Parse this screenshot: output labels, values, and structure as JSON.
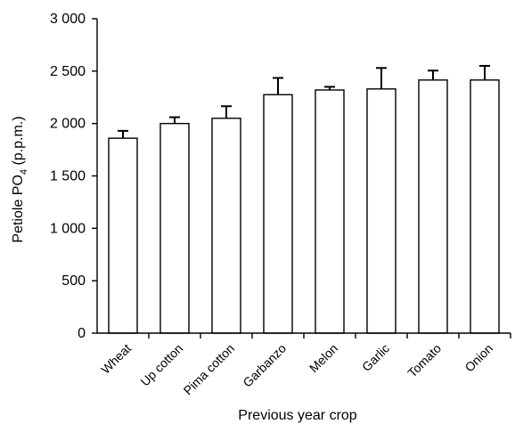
{
  "chart_data": {
    "type": "bar",
    "categories": [
      "Wheat",
      "Up cotton",
      "Pima cotton",
      "Garbanzo",
      "Melon",
      "Garlic",
      "Tomato",
      "Onion"
    ],
    "values": [
      1860,
      2000,
      2050,
      2275,
      2320,
      2330,
      2415,
      2415
    ],
    "error_upper": [
      70,
      60,
      115,
      160,
      30,
      200,
      90,
      135
    ],
    "xlabel": "Previous year crop",
    "ylabel_main": "Petiole PO",
    "ylabel_sub": "4",
    "ylabel_unit": " (p.p.m.)",
    "ylim": [
      0,
      3000
    ],
    "yticks": [
      0,
      500,
      1000,
      1500,
      2000,
      2500,
      3000
    ],
    "ytick_labels": [
      "0",
      "500",
      "1 000",
      "1 500",
      "2 000",
      "2 500",
      "3 000"
    ],
    "grid": false,
    "legend": "none"
  }
}
